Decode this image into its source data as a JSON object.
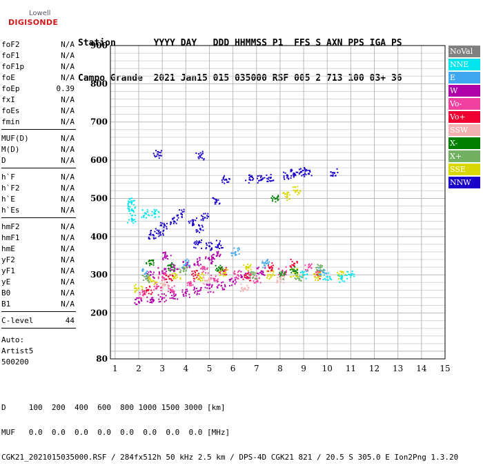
{
  "logo": {
    "line1": "Lowell",
    "line2": "DIGISONDE"
  },
  "header": {
    "row1": "Station       YYYY DAY   DDD HHMMSS P1  FFS S AXN PPS IGA PS",
    "row2": "Campo Grande  2021 Jan15 015 035000 RSF 005 2 713 100 03+ 36"
  },
  "params": {
    "group1": [
      {
        "name": "foF2",
        "value": "N/A"
      },
      {
        "name": "foF1",
        "value": "N/A"
      },
      {
        "name": "foF1p",
        "value": "N/A"
      },
      {
        "name": "foE",
        "value": "N/A"
      },
      {
        "name": "foEp",
        "value": "0.39"
      },
      {
        "name": "fxI",
        "value": "N/A"
      },
      {
        "name": "foEs",
        "value": "N/A"
      },
      {
        "name": "fmin",
        "value": "N/A"
      }
    ],
    "group2": [
      {
        "name": "MUF(D)",
        "value": "N/A"
      },
      {
        "name": "M(D)",
        "value": "N/A"
      },
      {
        "name": "D",
        "value": "N/A"
      }
    ],
    "group3": [
      {
        "name": "h`F",
        "value": "N/A"
      },
      {
        "name": "h`F2",
        "value": "N/A"
      },
      {
        "name": "h`E",
        "value": "N/A"
      },
      {
        "name": "h`Es",
        "value": "N/A"
      }
    ],
    "group4": [
      {
        "name": "hmF2",
        "value": "N/A"
      },
      {
        "name": "hmF1",
        "value": "N/A"
      },
      {
        "name": "hmE",
        "value": "N/A"
      },
      {
        "name": "yF2",
        "value": "N/A"
      },
      {
        "name": "yF1",
        "value": "N/A"
      },
      {
        "name": "yE",
        "value": "N/A"
      },
      {
        "name": "B0",
        "value": "N/A"
      },
      {
        "name": "B1",
        "value": "N/A"
      }
    ],
    "group5": [
      {
        "name": "C-level",
        "value": "44"
      }
    ],
    "auto": [
      "Auto:",
      "Artist5",
      "500200"
    ]
  },
  "legend": [
    {
      "label": "NoVal",
      "color": "#808080"
    },
    {
      "label": "NNE",
      "color": "#00e5ee"
    },
    {
      "label": "E",
      "color": "#40a8f0"
    },
    {
      "label": "W",
      "color": "#b000a8"
    },
    {
      "label": "Vo-",
      "color": "#f040a0"
    },
    {
      "label": "Vo+",
      "color": "#f00030"
    },
    {
      "label": "SSW",
      "color": "#f4b0b0"
    },
    {
      "label": "X-",
      "color": "#008000"
    },
    {
      "label": "X+",
      "color": "#70b060"
    },
    {
      "label": "SSE",
      "color": "#d8d800"
    },
    {
      "label": "NNW",
      "color": "#1800c8"
    }
  ],
  "chart_data": {
    "type": "scatter",
    "xlim": [
      0.8,
      15
    ],
    "ylim": [
      80,
      900
    ],
    "x_ticks": [
      1,
      2,
      3,
      4,
      5,
      6,
      7,
      8,
      9,
      10,
      11,
      12,
      13,
      14,
      15
    ],
    "y_ticks": [
      200,
      300,
      400,
      500,
      600,
      700,
      800,
      900
    ],
    "y_tick_labels": [
      "200",
      "300",
      "400",
      "500",
      "600",
      "700",
      "800",
      "900"
    ],
    "y_min_label": "80",
    "grid": true,
    "legend_position": "right",
    "series": [
      {
        "name": "NNW",
        "color": "#1800c8",
        "points": [
          [
            8.3,
            560
          ],
          [
            8.6,
            565
          ],
          [
            8.9,
            570
          ],
          [
            9.2,
            565
          ],
          [
            7.6,
            555
          ],
          [
            7.2,
            550
          ],
          [
            6.7,
            550
          ],
          [
            5.7,
            550
          ],
          [
            5.3,
            496
          ],
          [
            4.8,
            450
          ],
          [
            4.6,
            420
          ],
          [
            4.3,
            440
          ],
          [
            3.8,
            460
          ],
          [
            3.5,
            440
          ],
          [
            3.1,
            430
          ],
          [
            2.9,
            410
          ],
          [
            2.6,
            405
          ],
          [
            2.8,
            616
          ],
          [
            4.6,
            612
          ],
          [
            10.3,
            567
          ],
          [
            4.5,
            380
          ],
          [
            5.0,
            375
          ],
          [
            5.4,
            380
          ]
        ]
      },
      {
        "name": "W",
        "color": "#b000a8",
        "points": [
          [
            2.0,
            230
          ],
          [
            2.5,
            235
          ],
          [
            3.0,
            240
          ],
          [
            3.5,
            245
          ],
          [
            4.0,
            252
          ],
          [
            4.5,
            258
          ],
          [
            5.0,
            265
          ],
          [
            5.5,
            272
          ],
          [
            6.0,
            282
          ],
          [
            2.5,
            300
          ],
          [
            3.0,
            310
          ],
          [
            3.5,
            320
          ],
          [
            4.0,
            325
          ],
          [
            4.5,
            335
          ],
          [
            5.0,
            340
          ],
          [
            5.3,
            350
          ],
          [
            3.2,
            350
          ],
          [
            6.5,
            300
          ],
          [
            7.2,
            310
          ]
        ]
      },
      {
        "name": "Vo-",
        "color": "#f040a0",
        "points": [
          [
            2.2,
            250
          ],
          [
            2.8,
            270
          ],
          [
            3.4,
            260
          ],
          [
            4.2,
            280
          ],
          [
            5.2,
            290
          ],
          [
            6.2,
            300
          ],
          [
            7.0,
            290
          ],
          [
            8.1,
            310
          ],
          [
            9.2,
            320
          ],
          [
            3.0,
            295
          ],
          [
            4.8,
            315
          ]
        ]
      },
      {
        "name": "Vo+",
        "color": "#f00030",
        "points": [
          [
            2.4,
            260
          ],
          [
            3.3,
            290
          ],
          [
            4.4,
            300
          ],
          [
            5.6,
            310
          ],
          [
            6.6,
            295
          ],
          [
            7.6,
            320
          ],
          [
            8.6,
            330
          ],
          [
            9.6,
            300
          ]
        ]
      },
      {
        "name": "SSE",
        "color": "#d8d800",
        "points": [
          [
            2.0,
            265
          ],
          [
            2.6,
            285
          ],
          [
            3.6,
            300
          ],
          [
            4.6,
            295
          ],
          [
            5.6,
            305
          ],
          [
            6.6,
            320
          ],
          [
            7.6,
            300
          ],
          [
            8.6,
            305
          ],
          [
            9.6,
            295
          ],
          [
            10.6,
            300
          ],
          [
            8.3,
            505
          ],
          [
            8.7,
            520
          ]
        ]
      },
      {
        "name": "NNE",
        "color": "#00e5ee",
        "points": [
          [
            1.7,
            470
          ],
          [
            1.7,
            490
          ],
          [
            1.7,
            445
          ],
          [
            2.3,
            460
          ],
          [
            2.7,
            460
          ],
          [
            9.0,
            300
          ],
          [
            10.0,
            295
          ],
          [
            10.6,
            290
          ],
          [
            11.0,
            300
          ]
        ]
      },
      {
        "name": "E",
        "color": "#40a8f0",
        "points": [
          [
            2.3,
            305
          ],
          [
            4.0,
            330
          ],
          [
            6.1,
            360
          ],
          [
            7.4,
            330
          ],
          [
            9.8,
            310
          ]
        ]
      },
      {
        "name": "X-",
        "color": "#008000",
        "points": [
          [
            2.5,
            330
          ],
          [
            3.4,
            320
          ],
          [
            5.4,
            320
          ],
          [
            7.8,
            500
          ],
          [
            8.1,
            298
          ],
          [
            8.6,
            310
          ]
        ]
      },
      {
        "name": "X+",
        "color": "#70b060",
        "points": [
          [
            2.3,
            290
          ],
          [
            3.9,
            310
          ],
          [
            6.9,
            300
          ],
          [
            8.8,
            290
          ],
          [
            9.7,
            320
          ]
        ]
      },
      {
        "name": "SSW",
        "color": "#f4b0b0",
        "points": [
          [
            3.1,
            275
          ],
          [
            4.9,
            285
          ],
          [
            6.5,
            265
          ],
          [
            8.0,
            290
          ]
        ]
      }
    ]
  },
  "footer": {
    "line1": "D     100  200  400  600  800 1000 1500 3000 [km]",
    "line2": "MUF   0.0  0.0  0.0  0.0  0.0  0.0  0.0  0.0 [MHz]",
    "line3": "CGK21_2021015035000.RSF / 284fx512h 50 kHz 2.5 km / DPS-4D CGK21 821 / 20.5 S 305.0 E Ion2Png 1.3.20"
  }
}
